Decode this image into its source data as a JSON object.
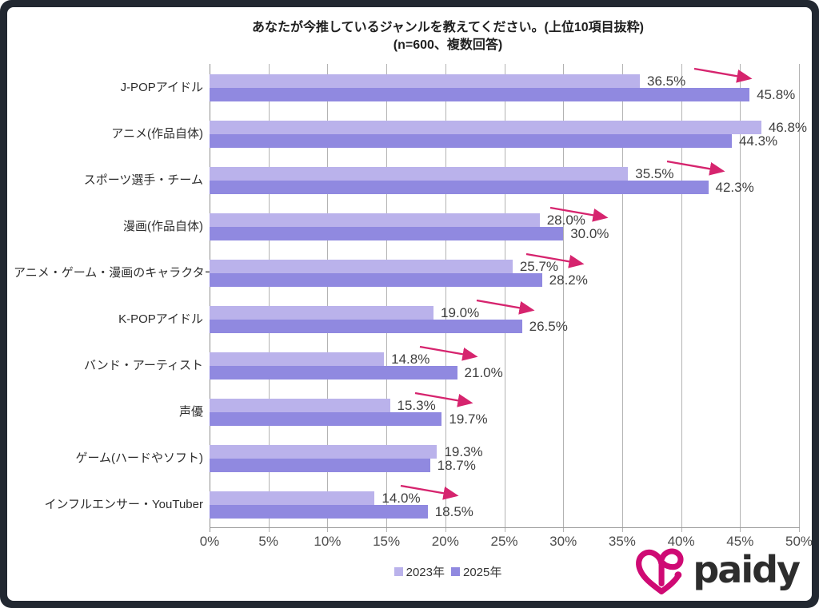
{
  "frame": {
    "border_color": "#222831",
    "background": "#ffffff"
  },
  "chart_data": {
    "type": "bar",
    "orientation": "horizontal",
    "title": "あなたが今推しているジャンルを教えてください。(上位10項目抜粋)",
    "subtitle": "(n=600、複数回答)",
    "categories": [
      "J-POPアイドル",
      "アニメ(作品自体)",
      "スポーツ選手・チーム",
      "漫画(作品自体)",
      "アニメ・ゲーム・漫画のキャラクター",
      "K-POPアイドル",
      "バンド・アーティスト",
      "声優",
      "ゲーム(ハードやソフト)",
      "インフルエンサー・YouTuber"
    ],
    "series": [
      {
        "name": "2023年",
        "color": "#bab2eb",
        "values": [
          36.5,
          46.8,
          35.5,
          28.0,
          25.7,
          19.0,
          14.8,
          15.3,
          19.3,
          14.0
        ],
        "labels": [
          "36.5%",
          "46.8%",
          "35.5%",
          "28.0%",
          "25.7%",
          "19.0%",
          "14.8%",
          "15.3%",
          "19.3%",
          "14.0%"
        ]
      },
      {
        "name": "2025年",
        "color": "#9089e0",
        "values": [
          45.8,
          44.3,
          42.3,
          30.0,
          28.2,
          26.5,
          21.0,
          19.7,
          18.7,
          18.5
        ],
        "labels": [
          "45.8%",
          "44.3%",
          "42.3%",
          "30.0%",
          "28.2%",
          "26.5%",
          "21.0%",
          "19.7%",
          "18.7%",
          "18.5%"
        ]
      }
    ],
    "increase_arrows": [
      true,
      false,
      true,
      true,
      true,
      true,
      true,
      true,
      false,
      true
    ],
    "arrow_color": "#d6246e",
    "x_axis": {
      "min": 0,
      "max": 50,
      "step": 5,
      "tick_labels": [
        "0%",
        "5%",
        "10%",
        "15%",
        "20%",
        "25%",
        "30%",
        "35%",
        "40%",
        "45%",
        "50%"
      ]
    },
    "grid": true,
    "legend_position": "bottom"
  },
  "logo": {
    "wordmark": "paidy",
    "icon": "paidy-heart-icon",
    "icon_color": "#cf0a74",
    "text_color": "#2d2d2d"
  }
}
